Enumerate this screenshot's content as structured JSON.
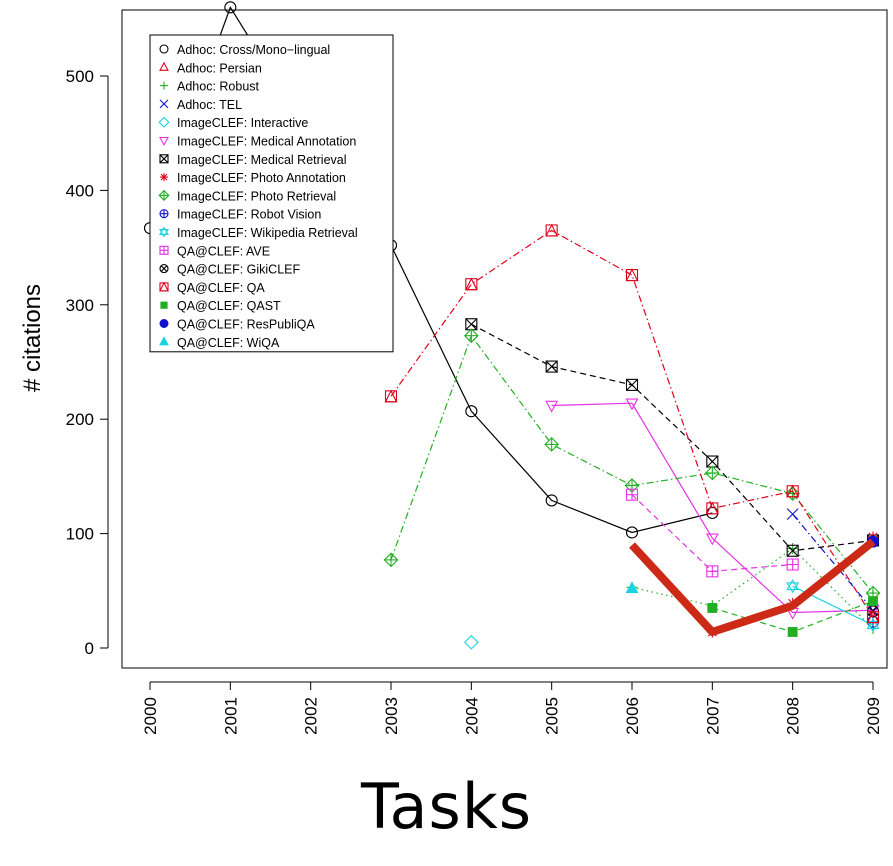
{
  "chart_data": {
    "type": "line",
    "title": "",
    "xlabel": "Tasks",
    "ylabel": "# citations",
    "x": [
      2000,
      2001,
      2002,
      2003,
      2004,
      2005,
      2006,
      2007,
      2008,
      2009
    ],
    "xlim": [
      2000,
      2009
    ],
    "ylim": [
      0,
      560
    ],
    "yticks": [
      0,
      100,
      200,
      300,
      400,
      500
    ],
    "grid": false,
    "legend_position": "top-left",
    "series": [
      {
        "name": "Adhoc: Cross/Mono−lingual",
        "color": "#000000",
        "marker": "circle",
        "line": "solid",
        "points": [
          [
            2000,
            367
          ],
          [
            2001,
            560
          ],
          [
            2002,
            447
          ],
          [
            2003,
            352
          ],
          [
            2004,
            207
          ],
          [
            2005,
            129
          ],
          [
            2006,
            101
          ],
          [
            2007,
            118
          ]
        ]
      },
      {
        "name": "Adhoc: Persian",
        "color": "#e0001b",
        "marker": "triangle",
        "line": "none",
        "points": []
      },
      {
        "name": "Adhoc: Robust",
        "color": "#22b022",
        "marker": "plus",
        "line": "dotted",
        "points": [
          [
            2006,
            53
          ],
          [
            2007,
            37
          ],
          [
            2008,
            87
          ],
          [
            2009,
            17
          ]
        ]
      },
      {
        "name": "Adhoc: TEL",
        "color": "#1010d0",
        "marker": "x",
        "line": "dashdot",
        "points": [
          [
            2008,
            117
          ],
          [
            2009,
            33
          ]
        ]
      },
      {
        "name": "ImageCLEF: Interactive",
        "color": "#19d3e0",
        "marker": "diamond",
        "line": "none",
        "points": [
          [
            2004,
            5
          ]
        ]
      },
      {
        "name": "ImageCLEF: Medical Annotation",
        "color": "#e632e6",
        "marker": "triangle-down",
        "line": "solid",
        "points": [
          [
            2005,
            212
          ],
          [
            2006,
            214
          ],
          [
            2007,
            96
          ],
          [
            2008,
            31
          ],
          [
            2009,
            33
          ]
        ]
      },
      {
        "name": "ImageCLEF: Medical Retrieval",
        "color": "#000000",
        "marker": "box-x",
        "line": "dashed",
        "points": [
          [
            2004,
            283
          ],
          [
            2005,
            246
          ],
          [
            2006,
            230
          ],
          [
            2007,
            163
          ],
          [
            2008,
            85
          ],
          [
            2009,
            94
          ]
        ]
      },
      {
        "name": "ImageCLEF: Photo Annotation",
        "color": "#e0001b",
        "marker": "asterisk",
        "line": "solid",
        "points": [
          [
            2007,
            14
          ],
          [
            2008,
            39
          ],
          [
            2009,
            97
          ]
        ]
      },
      {
        "name": "ImageCLEF: Photo Retrieval",
        "color": "#22b022",
        "marker": "diamond-plus",
        "line": "dashdot",
        "points": [
          [
            2003,
            77
          ],
          [
            2004,
            273
          ],
          [
            2005,
            178
          ],
          [
            2006,
            142
          ],
          [
            2007,
            153
          ],
          [
            2008,
            135
          ],
          [
            2009,
            48
          ]
        ]
      },
      {
        "name": "ImageCLEF: Robot Vision",
        "color": "#1010d0",
        "marker": "circle-plus",
        "line": "none",
        "points": [
          [
            2009,
            23
          ]
        ]
      },
      {
        "name": "ImageCLEF: Wikipedia Retrieval",
        "color": "#19d3e0",
        "marker": "star-david",
        "line": "solid",
        "points": [
          [
            2008,
            54
          ],
          [
            2009,
            20
          ]
        ]
      },
      {
        "name": "QA@CLEF: AVE",
        "color": "#e632e6",
        "marker": "box-plus",
        "line": "dashed",
        "points": [
          [
            2006,
            134
          ],
          [
            2007,
            67
          ],
          [
            2008,
            73
          ]
        ]
      },
      {
        "name": "QA@CLEF: GikiCLEF",
        "color": "#000000",
        "marker": "circle-x",
        "line": "none",
        "points": [
          [
            2009,
            32
          ]
        ]
      },
      {
        "name": "QA@CLEF: QA",
        "color": "#e0001b",
        "marker": "box-triangle",
        "line": "dashdot",
        "points": [
          [
            2003,
            220
          ],
          [
            2004,
            318
          ],
          [
            2005,
            365
          ],
          [
            2006,
            326
          ],
          [
            2007,
            122
          ],
          [
            2008,
            137
          ],
          [
            2009,
            27
          ]
        ]
      },
      {
        "name": "QA@CLEF: QAST",
        "color": "#22b022",
        "marker": "square-filled",
        "line": "dashed",
        "points": [
          [
            2007,
            35
          ],
          [
            2008,
            14
          ],
          [
            2009,
            41
          ]
        ]
      },
      {
        "name": "QA@CLEF: ResPubliQA",
        "color": "#1010d0",
        "marker": "circle-filled",
        "line": "none",
        "points": [
          [
            2009,
            93
          ]
        ]
      },
      {
        "name": "QA@CLEF: WiQA",
        "color": "#19d3e0",
        "marker": "triangle-filled",
        "line": "none",
        "points": [
          [
            2006,
            52
          ]
        ]
      }
    ],
    "annotations": [
      {
        "type": "highlight-line",
        "color": "#cc2a17",
        "points": [
          [
            2006,
            90
          ],
          [
            2007,
            14
          ],
          [
            2008,
            37
          ],
          [
            2009,
            93
          ]
        ]
      }
    ]
  }
}
